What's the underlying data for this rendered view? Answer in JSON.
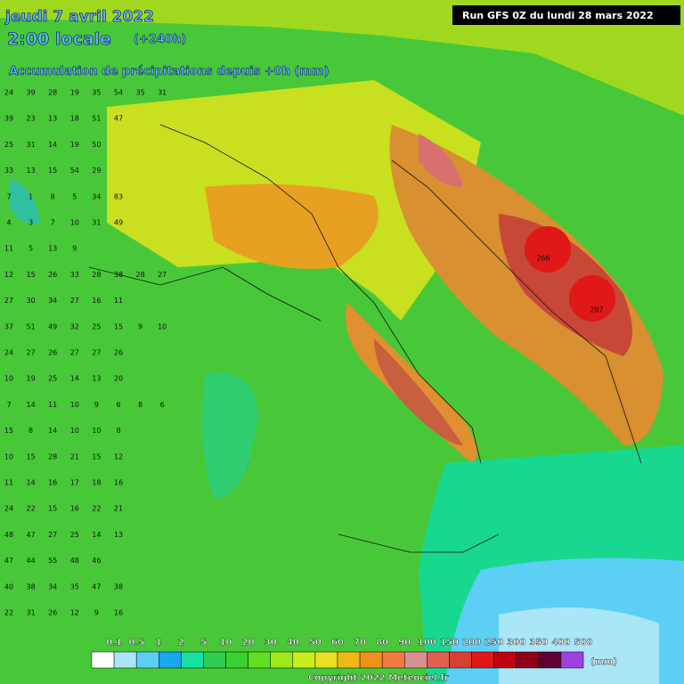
{
  "header": {
    "date": "jeudi 7 avril 2022",
    "time": "2:00 locale",
    "lead": "(+240h)",
    "subtitle": "Accumulation de précipitations depuis +0h (mm)",
    "run": "Run GFS 0Z du lundi 28 mars 2022"
  },
  "legend": {
    "labels": [
      "0.1",
      "0.5",
      "1",
      "2",
      "5",
      "10",
      "20",
      "30",
      "40",
      "50",
      "60",
      "70",
      "80",
      "90",
      "100",
      "150",
      "200",
      "250",
      "300",
      "350",
      "400",
      "500"
    ],
    "colors": [
      "#ffffff",
      "#a8e6f8",
      "#5ccff5",
      "#1aa6f0",
      "#18e0a0",
      "#30cc50",
      "#3cd030",
      "#60e020",
      "#a0e818",
      "#c8f018",
      "#e8e020",
      "#f0b818",
      "#f09018",
      "#f07a40",
      "#d89090",
      "#e06050",
      "#d84030",
      "#e01818",
      "#c00010",
      "#900018",
      "#600030",
      "#a040e0"
    ],
    "unit": "(mm)"
  },
  "grid": {
    "rows": [
      [
        "24",
        "39",
        "28",
        "19",
        "35",
        "54",
        "35",
        "31"
      ],
      [
        "39",
        "23",
        "13",
        "18",
        "51",
        "47"
      ],
      [
        "25",
        "31",
        "14",
        "19",
        "50"
      ],
      [
        "33",
        "13",
        "15",
        "54",
        "29"
      ],
      [
        "7",
        "1",
        "8",
        "5",
        "34",
        "83"
      ],
      [
        "4",
        "3",
        "7",
        "10",
        "31",
        "49"
      ],
      [
        "11",
        "5",
        "13",
        "9"
      ],
      [
        "12",
        "15",
        "26",
        "33",
        "28",
        "38",
        "28",
        "27"
      ],
      [
        "27",
        "30",
        "34",
        "27",
        "16",
        "11"
      ],
      [
        "37",
        "51",
        "49",
        "32",
        "25",
        "15",
        "9",
        "10"
      ],
      [
        "24",
        "27",
        "26",
        "27",
        "27",
        "26"
      ],
      [
        "10",
        "19",
        "25",
        "14",
        "13",
        "20"
      ],
      [
        "7",
        "14",
        "11",
        "10",
        "9",
        "6",
        "8",
        "6"
      ],
      [
        "15",
        "8",
        "14",
        "10",
        "10",
        "8"
      ],
      [
        "10",
        "15",
        "28",
        "21",
        "15",
        "12"
      ],
      [
        "11",
        "14",
        "16",
        "17",
        "18",
        "16"
      ],
      [
        "24",
        "22",
        "15",
        "16",
        "22",
        "21"
      ],
      [
        "48",
        "47",
        "27",
        "25",
        "14",
        "13"
      ],
      [
        "47",
        "44",
        "55",
        "48",
        "46"
      ],
      [
        "40",
        "38",
        "34",
        "35",
        "47",
        "38"
      ],
      [
        "22",
        "31",
        "26",
        "12",
        "9",
        "16"
      ]
    ],
    "peaks": [
      "266",
      "287"
    ]
  },
  "footer": {
    "copyright": "Copyright 2022 Meteociel.fr"
  }
}
